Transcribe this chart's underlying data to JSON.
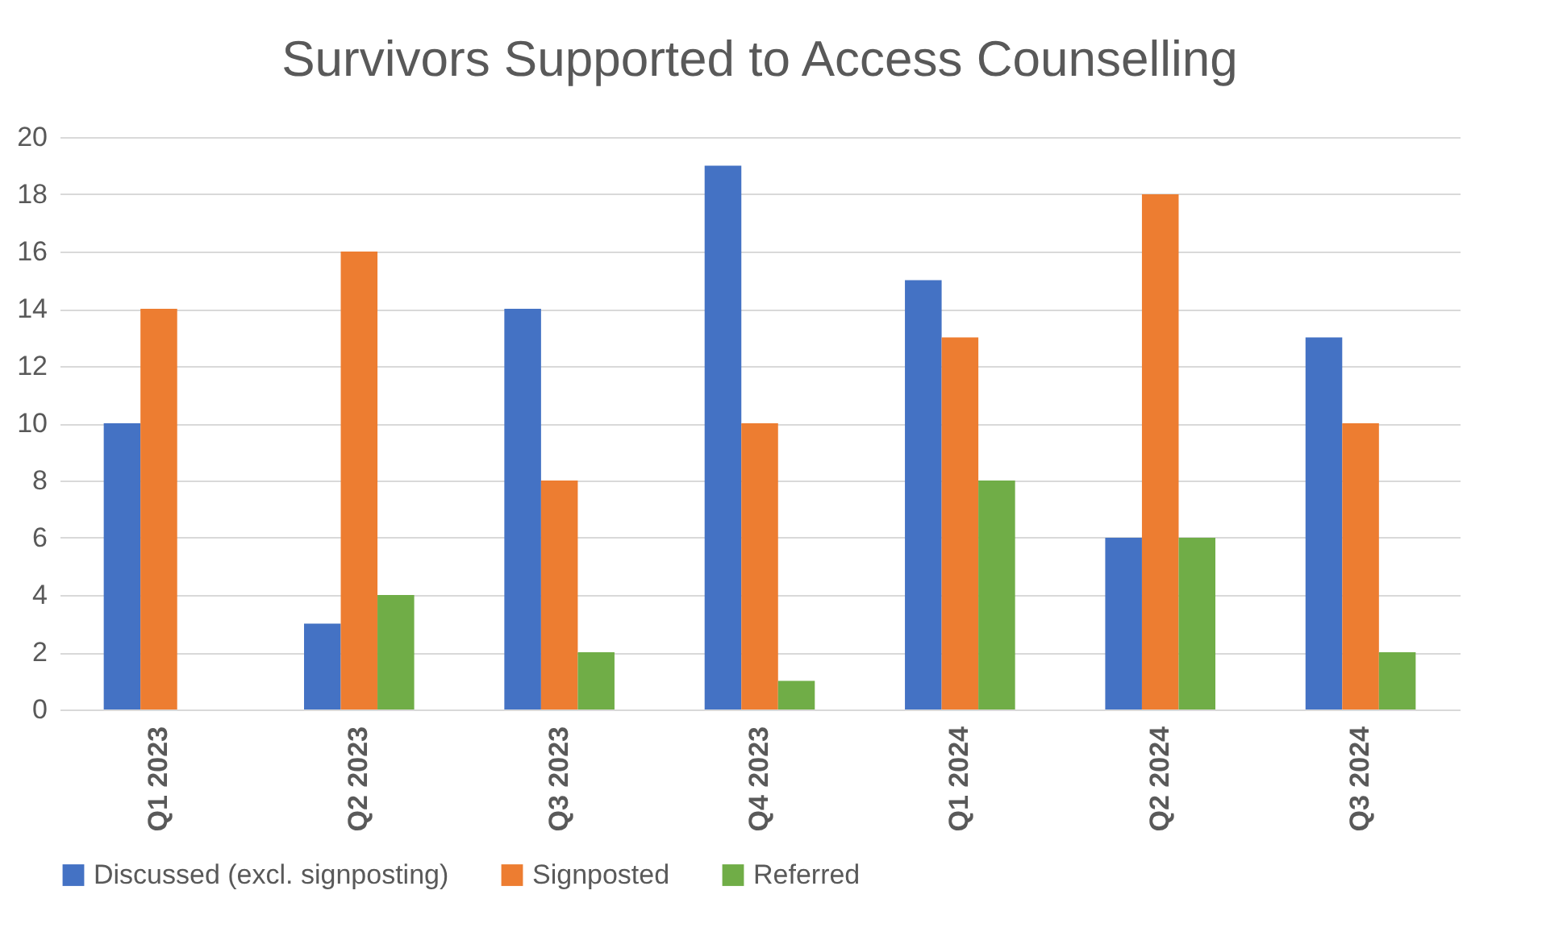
{
  "chart_data": {
    "type": "bar",
    "title": "Survivors Supported to Access Counselling",
    "categories": [
      "Q1 2023",
      "Q2 2023",
      "Q3 2023",
      "Q4 2023",
      "Q1 2024",
      "Q2 2024",
      "Q3 2024"
    ],
    "series": [
      {
        "name": "Discussed (excl. signposting)",
        "color": "#4472c4",
        "values": [
          10,
          3,
          14,
          19,
          15,
          6,
          13
        ]
      },
      {
        "name": "Signposted",
        "color": "#ed7d31",
        "values": [
          14,
          16,
          8,
          10,
          13,
          18,
          10
        ]
      },
      {
        "name": "Referred",
        "color": "#70ad47",
        "values": [
          0,
          4,
          2,
          1,
          8,
          6,
          2
        ]
      }
    ],
    "ylim": [
      0,
      20
    ],
    "yticks": [
      0,
      2,
      4,
      6,
      8,
      10,
      12,
      14,
      16,
      18,
      20
    ],
    "grid": "y",
    "legend": "bottom"
  }
}
